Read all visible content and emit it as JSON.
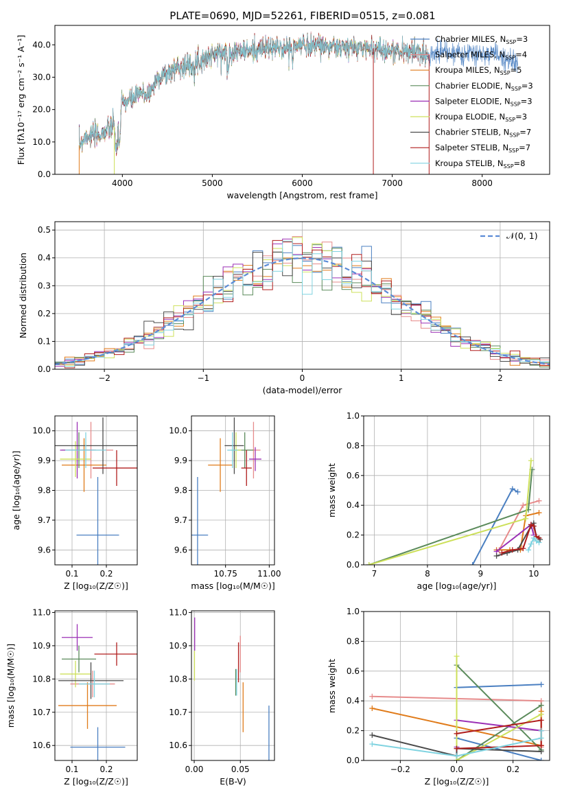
{
  "figure_title": "PLATE=0690, MJD=52261, FIBERID=0515, z=0.081",
  "colors": {
    "c1": "#4a7fc1",
    "c2": "#e68a8a",
    "c3": "#e07b1a",
    "c4": "#5a8a5a",
    "c5": "#9b2fb5",
    "c6": "#cde05a",
    "c7": "#4a4a4a",
    "c8": "#b01c1c",
    "c9": "#7fd3e0"
  },
  "chart_data": [
    {
      "id": "spectrum",
      "type": "line",
      "title": "PLATE=0690, MJD=52261, FIBERID=0515, z=0.081",
      "xlabel": "wavelength [Angstrom, rest frame]",
      "ylabel": "Flux [fλ10⁻¹⁷ erg cm⁻² s⁻¹ A⁻¹]",
      "xlim": [
        3250,
        8750
      ],
      "ylim": [
        0,
        46
      ],
      "xticks": [
        4000,
        5000,
        6000,
        7000,
        8000
      ],
      "yticks": [
        0,
        10,
        20,
        30,
        40
      ],
      "grid": false,
      "legend_position": "upper right",
      "series": [
        {
          "name": "Chabrier MILES, N_SSP=3",
          "color": "#4a7fc1"
        },
        {
          "name": "Salpeter MILES, N_SSP=4",
          "color": "#e68a8a"
        },
        {
          "name": "Kroupa MILES, N_SSP=5",
          "color": "#e07b1a"
        },
        {
          "name": "Chabrier ELODIE, N_SSP=3",
          "color": "#5a8a5a"
        },
        {
          "name": "Salpeter ELODIE, N_SSP=3",
          "color": "#9b2fb5"
        },
        {
          "name": "Kroupa ELODIE, N_SSP=3",
          "color": "#cde05a"
        },
        {
          "name": "Chabrier STELIB, N_SSP=7",
          "color": "#4a4a4a"
        },
        {
          "name": "Salpeter STELIB, N_SSP=7",
          "color": "#b01c1c"
        },
        {
          "name": "Kroupa STELIB, N_SSP=8",
          "color": "#7fd3e0"
        }
      ],
      "continuum": {
        "x": [
          3520,
          3600,
          3700,
          3800,
          3900,
          3950,
          4000,
          4100,
          4200,
          4300,
          4400,
          4500,
          4600,
          4800,
          5000,
          5200,
          5400,
          5600,
          5800,
          6000,
          6200,
          6400,
          6600,
          6800,
          7000,
          7200,
          7400,
          7600,
          7800,
          8000,
          8200,
          8400
        ],
        "y": [
          9,
          12,
          12,
          13,
          15,
          14,
          22,
          23,
          25,
          25,
          30,
          31,
          33,
          34,
          37,
          38,
          38,
          39,
          39,
          40,
          40,
          39,
          39,
          39,
          38,
          38,
          37,
          38,
          37,
          37,
          37,
          34
        ]
      }
    },
    {
      "id": "residuals",
      "type": "histogram",
      "xlabel": "(data-model)/error",
      "ylabel": "Normed distribution",
      "xlim": [
        -2.5,
        2.5
      ],
      "ylim": [
        0,
        0.53
      ],
      "xticks": [
        -2,
        -1,
        0,
        1,
        2
      ],
      "yticks": [
        0.0,
        0.1,
        0.2,
        0.3,
        0.4,
        0.5
      ],
      "grid": true,
      "legend": "𝒩(0, 1)",
      "legend_position": "upper right",
      "bin_width": 0.1,
      "reference_curve": "normal(0,1)"
    },
    {
      "id": "age_vs_Z",
      "type": "scatter",
      "xlabel": "Z [log₁₀(Z/Z☉)]",
      "ylabel": "age  [log₁₀(age/yr)]",
      "xlim": [
        0.05,
        0.29
      ],
      "ylim": [
        9.55,
        10.05
      ],
      "xticks": [
        0.1,
        0.2
      ],
      "yticks": [
        9.6,
        9.7,
        9.8,
        9.9,
        10.0
      ],
      "grid": true,
      "points": [
        {
          "x": 0.175,
          "y": 9.65,
          "xerr": 0.062,
          "yerr": 0.195,
          "color": "#4a7fc1"
        },
        {
          "x": 0.155,
          "y": 9.935,
          "xerr": 0.065,
          "yerr": 0.095,
          "color": "#e68a8a"
        },
        {
          "x": 0.135,
          "y": 9.885,
          "xerr": 0.065,
          "yerr": 0.09,
          "color": "#e07b1a"
        },
        {
          "x": 0.12,
          "y": 9.935,
          "xerr": 0.05,
          "yerr": 0.06,
          "color": "#5a8a5a"
        },
        {
          "x": 0.115,
          "y": 9.935,
          "xerr": 0.05,
          "yerr": 0.095,
          "color": "#9b2fb5"
        },
        {
          "x": 0.11,
          "y": 9.905,
          "xerr": 0.045,
          "yerr": 0.06,
          "color": "#cde05a"
        },
        {
          "x": 0.19,
          "y": 9.95,
          "xerr": 0.2,
          "yerr": 0.095,
          "color": "#4a4a4a"
        },
        {
          "x": 0.23,
          "y": 9.875,
          "xerr": 0.07,
          "yerr": 0.06,
          "color": "#b01c1c"
        },
        {
          "x": 0.14,
          "y": 9.935,
          "xerr": 0.06,
          "yerr": 0.06,
          "color": "#7fd3e0"
        }
      ]
    },
    {
      "id": "age_vs_mass",
      "type": "scatter",
      "xlabel": "mass [log₁₀(M/M☉)]",
      "ylabel": "",
      "xlim": [
        10.555,
        11.03
      ],
      "ylim": [
        9.55,
        10.05
      ],
      "xticks": [
        10.75,
        11.0
      ],
      "xtick_labels": [
        "10.75",
        "11.00"
      ],
      "yticks": [
        9.6,
        9.7,
        9.8,
        9.9,
        10.0
      ],
      "grid": true,
      "points": [
        {
          "x": 10.59,
          "y": 9.65,
          "xerr": 0.06,
          "yerr": 0.195,
          "color": "#4a7fc1"
        },
        {
          "x": 10.91,
          "y": 9.935,
          "xerr": 0.04,
          "yerr": 0.095,
          "color": "#e68a8a"
        },
        {
          "x": 10.72,
          "y": 9.885,
          "xerr": 0.07,
          "yerr": 0.09,
          "color": "#e07b1a"
        },
        {
          "x": 10.86,
          "y": 9.935,
          "xerr": 0.05,
          "yerr": 0.06,
          "color": "#5a8a5a"
        },
        {
          "x": 10.92,
          "y": 9.905,
          "xerr": 0.035,
          "yerr": 0.04,
          "color": "#9b2fb5"
        },
        {
          "x": 10.81,
          "y": 9.935,
          "xerr": 0.03,
          "yerr": 0.06,
          "color": "#cde05a"
        },
        {
          "x": 10.8,
          "y": 9.95,
          "xerr": 0.055,
          "yerr": 0.095,
          "color": "#4a4a4a"
        },
        {
          "x": 10.87,
          "y": 9.875,
          "xerr": 0.03,
          "yerr": 0.06,
          "color": "#b01c1c"
        },
        {
          "x": 10.79,
          "y": 9.935,
          "xerr": 0.03,
          "yerr": 0.06,
          "color": "#7fd3e0"
        }
      ]
    },
    {
      "id": "weight_vs_age",
      "type": "line",
      "xlabel": "age  [log₁₀(age/yr)]",
      "ylabel": "mass weight",
      "xlim": [
        6.8,
        10.3
      ],
      "ylim": [
        0,
        1.0
      ],
      "xticks": [
        7,
        8,
        9,
        10
      ],
      "yticks": [
        0.0,
        0.2,
        0.4,
        0.6,
        0.8,
        1.0
      ],
      "grid": true,
      "series": [
        {
          "color": "#4a7fc1",
          "x": [
            8.85,
            9.6,
            9.7
          ],
          "y": [
            0.0,
            0.51,
            0.49
          ]
        },
        {
          "color": "#e68a8a",
          "x": [
            9.35,
            9.8,
            10.1
          ],
          "y": [
            0.1,
            0.4,
            0.43
          ]
        },
        {
          "color": "#e07b1a",
          "x": [
            9.3,
            9.55,
            9.75,
            9.85,
            10.1
          ],
          "y": [
            0.1,
            0.1,
            0.1,
            0.33,
            0.35
          ]
        },
        {
          "color": "#5a8a5a",
          "x": [
            6.9,
            9.9,
            9.97
          ],
          "y": [
            0.0,
            0.37,
            0.64
          ]
        },
        {
          "color": "#9b2fb5",
          "x": [
            9.3,
            9.95,
            10.0
          ],
          "y": [
            0.09,
            0.27,
            0.2
          ]
        },
        {
          "color": "#cde05a",
          "x": [
            6.9,
            9.85,
            9.95
          ],
          "y": [
            0.0,
            0.31,
            0.7
          ]
        },
        {
          "color": "#4a4a4a",
          "x": [
            9.3,
            9.5,
            9.7,
            9.95,
            10.0,
            10.05,
            10.12
          ],
          "y": [
            0.06,
            0.08,
            0.1,
            0.26,
            0.28,
            0.19,
            0.17
          ]
        },
        {
          "color": "#b01c1c",
          "x": [
            9.4,
            9.6,
            9.8,
            9.95,
            10.0,
            10.05,
            10.1
          ],
          "y": [
            0.08,
            0.1,
            0.11,
            0.27,
            0.26,
            0.19,
            0.18
          ]
        },
        {
          "color": "#7fd3e0",
          "x": [
            9.9,
            9.95,
            10.0,
            10.05,
            10.1
          ],
          "y": [
            0.1,
            0.14,
            0.18,
            0.16,
            0.15
          ]
        }
      ]
    },
    {
      "id": "mass_vs_Z",
      "type": "scatter",
      "xlabel": "Z [log₁₀(Z/Z☉)]",
      "ylabel": "mass [log₁₀(M/M☉)]",
      "xlim": [
        0.05,
        0.29
      ],
      "ylim": [
        10.555,
        11.005
      ],
      "xticks": [
        0.1,
        0.2
      ],
      "yticks": [
        10.6,
        10.7,
        10.8,
        10.9,
        11.0
      ],
      "grid": true,
      "points": [
        {
          "x": 0.175,
          "y": 10.595,
          "xerr": 0.08,
          "yerr": 0.06,
          "color": "#4a7fc1"
        },
        {
          "x": 0.16,
          "y": 10.785,
          "xerr": 0.065,
          "yerr": 0.04,
          "color": "#e68a8a"
        },
        {
          "x": 0.145,
          "y": 10.72,
          "xerr": 0.085,
          "yerr": 0.07,
          "color": "#e07b1a"
        },
        {
          "x": 0.12,
          "y": 10.86,
          "xerr": 0.05,
          "yerr": 0.04,
          "color": "#5a8a5a"
        },
        {
          "x": 0.115,
          "y": 10.925,
          "xerr": 0.045,
          "yerr": 0.04,
          "color": "#9b2fb5"
        },
        {
          "x": 0.11,
          "y": 10.815,
          "xerr": 0.045,
          "yerr": 0.04,
          "color": "#cde05a"
        },
        {
          "x": 0.155,
          "y": 10.795,
          "xerr": 0.095,
          "yerr": 0.055,
          "color": "#4a4a4a"
        },
        {
          "x": 0.23,
          "y": 10.875,
          "xerr": 0.065,
          "yerr": 0.035,
          "color": "#b01c1c"
        },
        {
          "x": 0.165,
          "y": 10.785,
          "xerr": 0.045,
          "yerr": 0.04,
          "color": "#7fd3e0"
        }
      ]
    },
    {
      "id": "mass_vs_EBV",
      "type": "scatter",
      "xlabel": "E(B-V)",
      "ylabel": "",
      "xlim": [
        -0.003,
        0.087
      ],
      "ylim": [
        10.555,
        11.005
      ],
      "xticks": [
        0.0,
        0.05
      ],
      "xtick_labels": [
        "0.00",
        "0.05"
      ],
      "yticks": [
        10.6,
        10.7,
        10.8,
        10.9,
        11.0
      ],
      "grid": true,
      "points": [
        {
          "x": 0.081,
          "y": 10.635,
          "xerr": 0,
          "yerr": 0.085,
          "color": "#4a7fc1"
        },
        {
          "x": 0.05,
          "y": 10.875,
          "xerr": 0,
          "yerr": 0.055,
          "color": "#e68a8a"
        },
        {
          "x": 0.053,
          "y": 10.715,
          "xerr": 0,
          "yerr": 0.075,
          "color": "#e07b1a"
        },
        {
          "x": 0.045,
          "y": 10.79,
          "xerr": 0,
          "yerr": 0.04,
          "color": "#5a8a5a"
        },
        {
          "x": 0.0005,
          "y": 10.935,
          "xerr": 0,
          "yerr": 0.05,
          "color": "#9b2fb5"
        },
        {
          "x": 0.0003,
          "y": 10.84,
          "xerr": 0,
          "yerr": 0.045,
          "color": "#cde05a"
        },
        {
          "x": 0.048,
          "y": 10.85,
          "xerr": 0,
          "yerr": 0.06,
          "color": "#b01c1c"
        },
        {
          "x": 0.046,
          "y": 10.79,
          "xerr": 0,
          "yerr": 0.04,
          "color": "#7fd3e0"
        }
      ]
    },
    {
      "id": "weight_vs_Z",
      "type": "line",
      "xlabel": "Z [log₁₀(Z/Z☉)]",
      "ylabel": "mass weight",
      "xlim": [
        -0.33,
        0.33
      ],
      "ylim": [
        0,
        1.0
      ],
      "xticks": [
        -0.2,
        0.0,
        0.2
      ],
      "xtick_labels": [
        "−0.2",
        "0.0",
        "0.2"
      ],
      "yticks": [
        0.0,
        0.2,
        0.4,
        0.6,
        0.8,
        1.0
      ],
      "grid": true,
      "series": [
        {
          "color": "#4a7fc1",
          "x": [
            0.3,
            0.0,
            0.0,
            0.3
          ],
          "y": [
            0.0,
            0.15,
            0.49,
            0.51
          ]
        },
        {
          "color": "#e68a8a",
          "x": [
            -0.3,
            0.3,
            0.3
          ],
          "y": [
            0.43,
            0.4,
            0.09
          ]
        },
        {
          "color": "#e07b1a",
          "x": [
            -0.3,
            0.3,
            0.3,
            0.3
          ],
          "y": [
            0.35,
            0.1,
            0.1,
            0.33
          ]
        },
        {
          "color": "#5a8a5a",
          "x": [
            0.3,
            0.0,
            0.0,
            0.3
          ],
          "y": [
            0.37,
            0.0,
            0.64,
            0.07
          ]
        },
        {
          "color": "#9b2fb5",
          "x": [
            0.0,
            0.0,
            0.3
          ],
          "y": [
            0.09,
            0.27,
            0.2
          ]
        },
        {
          "color": "#cde05a",
          "x": [
            0.0,
            0.0,
            0.3
          ],
          "y": [
            0.7,
            0.0,
            0.31
          ]
        },
        {
          "color": "#4a4a4a",
          "x": [
            -0.3,
            0.0,
            0.0,
            0.3
          ],
          "y": [
            0.17,
            0.03,
            0.08,
            0.06
          ]
        },
        {
          "color": "#b01c1c",
          "x": [
            0.0,
            0.3,
            0.3,
            0.0
          ],
          "y": [
            0.18,
            0.27,
            0.1,
            0.08
          ]
        },
        {
          "color": "#7fd3e0",
          "x": [
            -0.3,
            0.0,
            0.3,
            0.3
          ],
          "y": [
            0.11,
            0.03,
            0.15,
            0.2
          ]
        }
      ]
    }
  ]
}
